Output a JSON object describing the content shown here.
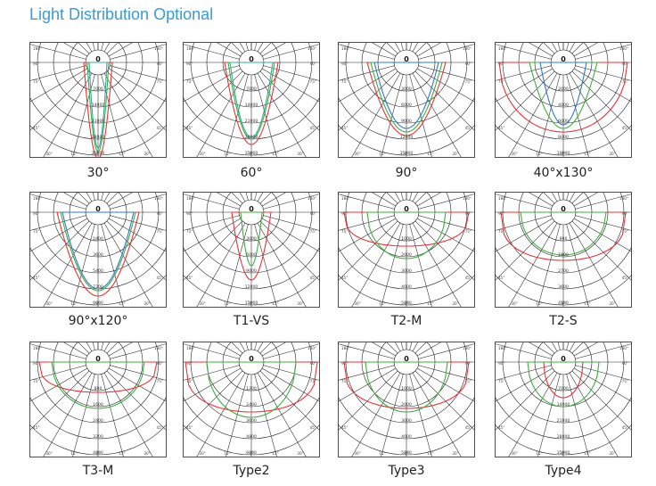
{
  "title": "Light Distribution Optional",
  "colors": {
    "title": "#3a9bd5",
    "red": "#e8323a",
    "green": "#3fae3f",
    "blue": "#2f79c9",
    "teal": "#3aa6a6",
    "grid": "#222222"
  },
  "angle_labels": {
    "top_left": "180°",
    "top_right": "180°",
    "left_outer": "90°",
    "right_outer": "90°",
    "left_mid": "75°",
    "right_mid": "75°",
    "left_low": "45°",
    "right_low": "45°",
    "bottom": [
      "30°",
      "15°",
      "0°",
      "15°",
      "30°"
    ]
  },
  "diagrams": [
    {
      "label": "30°",
      "center": "0",
      "rings": [
        "7000",
        "14000",
        "21000",
        "28000",
        "35000"
      ]
    },
    {
      "label": "60°",
      "center": "0",
      "rings": [
        "7000",
        "14000",
        "21000",
        "28000",
        "35000"
      ]
    },
    {
      "label": "90°",
      "center": "0",
      "rings": [
        "3000",
        "6000",
        "9000",
        "12000",
        "15000"
      ]
    },
    {
      "label": "40°x130°",
      "center": "0",
      "rings": [
        "2000",
        "4000",
        "6000",
        "8000",
        "10000"
      ]
    },
    {
      "label": "90°x120°",
      "center": "0",
      "rings": [
        "1800",
        "3600",
        "5400",
        "7200",
        "9000"
      ]
    },
    {
      "label": "T1-VS",
      "center": "0",
      "rings": [
        "3000",
        "6000",
        "9000",
        "12000",
        "15000"
      ]
    },
    {
      "label": "T2-M",
      "center": "0",
      "rings": [
        "1000",
        "2000",
        "3000",
        "4000",
        "5000"
      ]
    },
    {
      "label": "T2-S",
      "center": "0",
      "rings": [
        "900",
        "1800",
        "2700",
        "3600",
        "4500"
      ]
    },
    {
      "label": "T3-M",
      "center": "0",
      "rings": [
        "800",
        "1600",
        "2400",
        "3200",
        "4000"
      ]
    },
    {
      "label": "Type2",
      "center": "0",
      "rings": [
        "1200",
        "2400",
        "3600",
        "4800",
        "6000"
      ]
    },
    {
      "label": "Type3",
      "center": "0",
      "rings": [
        "1000",
        "2000",
        "3000",
        "4000",
        "5000"
      ]
    },
    {
      "label": "Type4",
      "center": "0",
      "rings": [
        "7000",
        "14000",
        "21000",
        "28000",
        "35000"
      ]
    }
  ]
}
